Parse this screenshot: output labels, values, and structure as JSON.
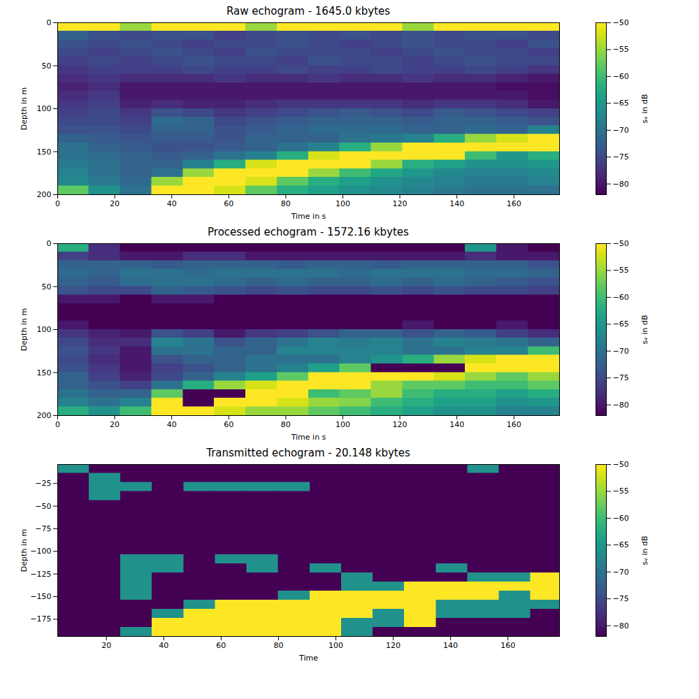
{
  "chart_data": [
    {
      "type": "heatmap",
      "title": "Raw echogram - 1645.0 kbytes",
      "x_label": "Time in s",
      "y_label": "Depth in m",
      "xlim": [
        0,
        176
      ],
      "xticks": [
        0,
        20,
        40,
        60,
        80,
        100,
        120,
        140,
        160
      ],
      "ylim": [
        200,
        0
      ],
      "yticks": [
        0,
        50,
        100,
        150,
        200
      ],
      "color": "viridis",
      "colorbar": {
        "range": [
          -82,
          -50
        ],
        "ticks": [
          -50,
          -55,
          -60,
          -65,
          -70,
          -75,
          -80
        ],
        "label": "sᵥ in dB"
      },
      "x_bins": [
        0,
        11,
        22,
        33,
        44,
        55,
        66,
        77,
        88,
        99,
        110,
        121,
        132,
        143,
        154,
        165,
        176
      ],
      "y_bins": [
        0,
        10,
        20,
        30,
        40,
        50,
        60,
        70,
        80,
        90,
        100,
        110,
        120,
        130,
        140,
        150,
        160,
        170,
        180,
        190,
        200
      ],
      "cells": [
        [
          -50,
          -50,
          -55,
          -50,
          -50,
          -50,
          -55,
          -50,
          -50,
          -50,
          -50,
          -55,
          -50,
          -50,
          -50,
          -50
        ],
        [
          -72,
          -74,
          -75,
          -74,
          -74,
          -76,
          -75,
          -74,
          -75,
          -74,
          -75,
          -74,
          -75,
          -74,
          -74,
          -75
        ],
        [
          -74,
          -75,
          -74,
          -75,
          -76,
          -75,
          -75,
          -74,
          -75,
          -76,
          -75,
          -74,
          -75,
          -75,
          -76,
          -74
        ],
        [
          -75,
          -76,
          -75,
          -74,
          -75,
          -76,
          -74,
          -75,
          -75,
          -75,
          -76,
          -75,
          -74,
          -75,
          -75,
          -76
        ],
        [
          -76,
          -75,
          -76,
          -75,
          -74,
          -75,
          -75,
          -76,
          -74,
          -75,
          -75,
          -76,
          -75,
          -74,
          -75,
          -75
        ],
        [
          -77,
          -76,
          -76,
          -76,
          -75,
          -76,
          -76,
          -75,
          -76,
          -76,
          -75,
          -76,
          -76,
          -75,
          -76,
          -77
        ],
        [
          -78,
          -77,
          -78,
          -78,
          -78,
          -77,
          -78,
          -78,
          -77,
          -78,
          -78,
          -77,
          -78,
          -78,
          -79,
          -80
        ],
        [
          -79,
          -78,
          -80,
          -80,
          -80,
          -80,
          -80,
          -80,
          -80,
          -80,
          -80,
          -80,
          -80,
          -80,
          -81,
          -81
        ],
        [
          -78,
          -77,
          -80,
          -80,
          -80,
          -80,
          -80,
          -80,
          -80,
          -80,
          -80,
          -80,
          -80,
          -80,
          -80,
          -81
        ],
        [
          -77,
          -76,
          -79,
          -78,
          -79,
          -79,
          -78,
          -77,
          -77,
          -77,
          -77,
          -78,
          -77,
          -77,
          -78,
          -80
        ],
        [
          -76,
          -75,
          -77,
          -74,
          -75,
          -77,
          -76,
          -75,
          -74,
          -73,
          -74,
          -75,
          -73,
          -74,
          -75,
          -76
        ],
        [
          -75,
          -75,
          -76,
          -71,
          -72,
          -75,
          -74,
          -73,
          -72,
          -72,
          -72,
          -73,
          -72,
          -72,
          -73,
          -74
        ],
        [
          -74,
          -74,
          -75,
          -72,
          -72,
          -74,
          -73,
          -72,
          -71,
          -71,
          -71,
          -72,
          -72,
          -71,
          -72,
          -68
        ],
        [
          -72,
          -73,
          -74,
          -73,
          -73,
          -74,
          -72,
          -72,
          -72,
          -70,
          -69,
          -68,
          -62,
          -55,
          -52,
          -50
        ],
        [
          -70,
          -72,
          -73,
          -74,
          -74,
          -73,
          -72,
          -70,
          -68,
          -62,
          -55,
          -50,
          -50,
          -50,
          -50,
          -50
        ],
        [
          -70,
          -71,
          -72,
          -73,
          -72,
          -70,
          -68,
          -62,
          -52,
          -50,
          -50,
          -50,
          -50,
          -60,
          -65,
          -62
        ],
        [
          -69,
          -70,
          -72,
          -72,
          -68,
          -62,
          -52,
          -50,
          -50,
          -50,
          -55,
          -62,
          -64,
          -66,
          -66,
          -65
        ],
        [
          -68,
          -70,
          -72,
          -70,
          -55,
          -50,
          -50,
          -50,
          -55,
          -60,
          -63,
          -65,
          -67,
          -68,
          -68,
          -67
        ],
        [
          -67,
          -69,
          -71,
          -55,
          -50,
          -50,
          -52,
          -58,
          -62,
          -64,
          -66,
          -67,
          -68,
          -69,
          -69,
          -68
        ],
        [
          -58,
          -66,
          -70,
          -50,
          -50,
          -52,
          -58,
          -62,
          -64,
          -66,
          -67,
          -68,
          -69,
          -70,
          -70,
          -70
        ]
      ]
    },
    {
      "type": "heatmap",
      "title": "Processed echogram - 1572.16 kbytes",
      "x_label": "Time in s",
      "y_label": "Depth in m",
      "xlim": [
        0,
        176
      ],
      "xticks": [
        0,
        20,
        40,
        60,
        80,
        100,
        120,
        140,
        160
      ],
      "ylim": [
        200,
        0
      ],
      "yticks": [
        0,
        50,
        100,
        150,
        200
      ],
      "color": "viridis",
      "colorbar": {
        "range": [
          -82,
          -50
        ],
        "ticks": [
          -50,
          -55,
          -60,
          -65,
          -70,
          -75,
          -80
        ],
        "label": "sᵥ in dB"
      },
      "x_bins": [
        0,
        11,
        22,
        33,
        44,
        55,
        66,
        77,
        88,
        99,
        110,
        121,
        132,
        143,
        154,
        165,
        176
      ],
      "y_bins": [
        0,
        10,
        20,
        30,
        40,
        50,
        60,
        70,
        80,
        90,
        100,
        110,
        120,
        130,
        140,
        150,
        160,
        170,
        180,
        190,
        200
      ],
      "cells": [
        [
          -62,
          -78,
          -82,
          -82,
          -82,
          -82,
          -82,
          -82,
          -82,
          -82,
          -82,
          -82,
          -82,
          -65,
          -80,
          -82
        ],
        [
          -76,
          -78,
          -80,
          -80,
          -78,
          -78,
          -80,
          -80,
          -80,
          -80,
          -80,
          -80,
          -80,
          -78,
          -80,
          -80
        ],
        [
          -72,
          -72,
          -72,
          -73,
          -72,
          -72,
          -72,
          -73,
          -72,
          -72,
          -73,
          -72,
          -72,
          -72,
          -72,
          -74
        ],
        [
          -71,
          -72,
          -70,
          -70,
          -71,
          -70,
          -70,
          -70,
          -70,
          -71,
          -70,
          -70,
          -70,
          -71,
          -71,
          -72
        ],
        [
          -72,
          -73,
          -71,
          -70,
          -70,
          -71,
          -72,
          -71,
          -72,
          -72,
          -71,
          -72,
          -71,
          -72,
          -73,
          -74
        ],
        [
          -74,
          -75,
          -75,
          -72,
          -73,
          -74,
          -75,
          -74,
          -75,
          -75,
          -74,
          -75,
          -74,
          -75,
          -75,
          -76
        ],
        [
          -80,
          -80,
          -82,
          -80,
          -80,
          -82,
          -82,
          -82,
          -82,
          -82,
          -82,
          -82,
          -82,
          -82,
          -82,
          -82
        ],
        [
          -82,
          -82,
          -82,
          -82,
          -82,
          -82,
          -82,
          -82,
          -82,
          -82,
          -82,
          -82,
          -82,
          -82,
          -82,
          -82
        ],
        [
          -82,
          -82,
          -82,
          -82,
          -82,
          -82,
          -82,
          -82,
          -82,
          -82,
          -82,
          -82,
          -82,
          -82,
          -82,
          -82
        ],
        [
          -80,
          -82,
          -82,
          -82,
          -82,
          -82,
          -82,
          -82,
          -82,
          -82,
          -82,
          -80,
          -82,
          -82,
          -80,
          -82
        ],
        [
          -77,
          -79,
          -80,
          -74,
          -76,
          -80,
          -77,
          -76,
          -74,
          -72,
          -72,
          -74,
          -72,
          -73,
          -76,
          -78
        ],
        [
          -75,
          -78,
          -78,
          -68,
          -70,
          -74,
          -72,
          -70,
          -68,
          -69,
          -68,
          -70,
          -68,
          -69,
          -70,
          -72
        ],
        [
          -74,
          -77,
          -80,
          -70,
          -70,
          -72,
          -72,
          -68,
          -68,
          -68,
          -68,
          -70,
          -70,
          -68,
          -68,
          -60
        ],
        [
          -75,
          -78,
          -80,
          -74,
          -72,
          -72,
          -70,
          -70,
          -70,
          -68,
          -66,
          -62,
          -55,
          -52,
          -50,
          -50
        ],
        [
          -74,
          -77,
          -80,
          -76,
          -74,
          -72,
          -70,
          -68,
          -64,
          -58,
          -82,
          -82,
          -82,
          -50,
          -50,
          -50
        ],
        [
          -72,
          -76,
          -79,
          -75,
          -72,
          -68,
          -64,
          -58,
          -50,
          -50,
          -50,
          -50,
          -52,
          -55,
          -58,
          -55
        ],
        [
          -72,
          -74,
          -76,
          -70,
          -62,
          -55,
          -52,
          -50,
          -50,
          -50,
          -55,
          -58,
          -58,
          -60,
          -60,
          -58
        ],
        [
          -70,
          -72,
          -72,
          -58,
          -82,
          -82,
          -50,
          -50,
          -60,
          -58,
          -55,
          -60,
          -62,
          -62,
          -64,
          -62
        ],
        [
          -68,
          -70,
          -68,
          -50,
          -82,
          -50,
          -50,
          -52,
          -55,
          -56,
          -60,
          -62,
          -64,
          -64,
          -66,
          -65
        ],
        [
          -62,
          -66,
          -60,
          -50,
          -50,
          -52,
          -55,
          -55,
          -58,
          -60,
          -62,
          -64,
          -66,
          -66,
          -68,
          -68
        ]
      ]
    },
    {
      "type": "heatmap",
      "title": "Transmitted echogram - 20.148 kbytes",
      "x_label": "Time",
      "y_label": "Depth in m",
      "xlim": [
        3,
        178
      ],
      "xticks": [
        20,
        40,
        60,
        80,
        100,
        120,
        140,
        160
      ],
      "ylim": [
        -194,
        -4
      ],
      "yticks": [
        -25,
        -50,
        -75,
        -100,
        -125,
        -150,
        -175
      ],
      "color": "viridis",
      "colorbar": {
        "range": [
          -82,
          -50
        ],
        "ticks": [
          -50,
          -55,
          -60,
          -65,
          -70,
          -75,
          -80
        ],
        "label": "sᵥ in dB"
      },
      "x_bins": [
        3,
        14,
        25,
        36,
        47,
        58,
        69,
        80,
        91,
        102,
        113,
        124,
        135,
        146,
        157,
        168,
        178
      ],
      "y_bins": [
        -4,
        -14,
        -24,
        -34,
        -44,
        -54,
        -64,
        -74,
        -84,
        -94,
        -104,
        -114,
        -124,
        -134,
        -144,
        -154,
        -164,
        -174,
        -184,
        -194
      ],
      "cells": [
        [
          -66,
          -82,
          -82,
          -82,
          -82,
          -82,
          -82,
          -82,
          -82,
          -82,
          -82,
          -82,
          -82,
          -66,
          -82,
          -82
        ],
        [
          -82,
          -66,
          -82,
          -82,
          -82,
          -82,
          -82,
          -82,
          -82,
          -82,
          -82,
          -82,
          -82,
          -82,
          -82,
          -82
        ],
        [
          -82,
          -66,
          -66,
          -82,
          -66,
          -66,
          -66,
          -66,
          -82,
          -82,
          -82,
          -82,
          -82,
          -82,
          -82,
          -82
        ],
        [
          -82,
          -66,
          -82,
          -82,
          -82,
          -82,
          -82,
          -82,
          -82,
          -82,
          -82,
          -82,
          -82,
          -82,
          -82,
          -82
        ],
        [
          -82,
          -82,
          -82,
          -82,
          -82,
          -82,
          -82,
          -82,
          -82,
          -82,
          -82,
          -82,
          -82,
          -82,
          -82,
          -82
        ],
        [
          -82,
          -82,
          -82,
          -82,
          -82,
          -82,
          -82,
          -82,
          -82,
          -82,
          -82,
          -82,
          -82,
          -82,
          -82,
          -82
        ],
        [
          -82,
          -82,
          -82,
          -82,
          -82,
          -82,
          -82,
          -82,
          -82,
          -82,
          -82,
          -82,
          -82,
          -82,
          -82,
          -82
        ],
        [
          -82,
          -82,
          -82,
          -82,
          -82,
          -82,
          -82,
          -82,
          -82,
          -82,
          -82,
          -82,
          -82,
          -82,
          -82,
          -82
        ],
        [
          -82,
          -82,
          -82,
          -82,
          -82,
          -82,
          -82,
          -82,
          -82,
          -82,
          -82,
          -82,
          -82,
          -82,
          -82,
          -82
        ],
        [
          -82,
          -82,
          -82,
          -82,
          -82,
          -82,
          -82,
          -82,
          -82,
          -82,
          -82,
          -82,
          -82,
          -82,
          -82,
          -82
        ],
        [
          -82,
          -82,
          -66,
          -66,
          -82,
          -66,
          -66,
          -82,
          -82,
          -82,
          -82,
          -82,
          -82,
          -82,
          -82,
          -82
        ],
        [
          -82,
          -82,
          -66,
          -66,
          -82,
          -82,
          -66,
          -82,
          -66,
          -82,
          -82,
          -82,
          -66,
          -82,
          -82,
          -82
        ],
        [
          -82,
          -82,
          -66,
          -82,
          -82,
          -82,
          -82,
          -82,
          -82,
          -66,
          -82,
          -82,
          -82,
          -66,
          -66,
          -50
        ],
        [
          -82,
          -82,
          -66,
          -82,
          -82,
          -82,
          -82,
          -82,
          -82,
          -66,
          -66,
          -50,
          -50,
          -50,
          -50,
          -50
        ],
        [
          -82,
          -82,
          -66,
          -82,
          -82,
          -82,
          -82,
          -66,
          -50,
          -50,
          -50,
          -50,
          -50,
          -50,
          -66,
          -50
        ],
        [
          -82,
          -82,
          -82,
          -82,
          -66,
          -50,
          -50,
          -50,
          -50,
          -50,
          -50,
          -50,
          -66,
          -66,
          -66,
          -66
        ],
        [
          -82,
          -82,
          -82,
          -66,
          -50,
          -50,
          -50,
          -50,
          -50,
          -50,
          -66,
          -50,
          -66,
          -66,
          -66,
          -82
        ],
        [
          -82,
          -82,
          -82,
          -50,
          -50,
          -50,
          -50,
          -50,
          -50,
          -66,
          -66,
          -50,
          -82,
          -82,
          -82,
          -82
        ],
        [
          -82,
          -82,
          -66,
          -50,
          -50,
          -50,
          -50,
          -50,
          -50,
          -66,
          -82,
          -82,
          -82,
          -82,
          -82,
          -82
        ]
      ]
    }
  ]
}
